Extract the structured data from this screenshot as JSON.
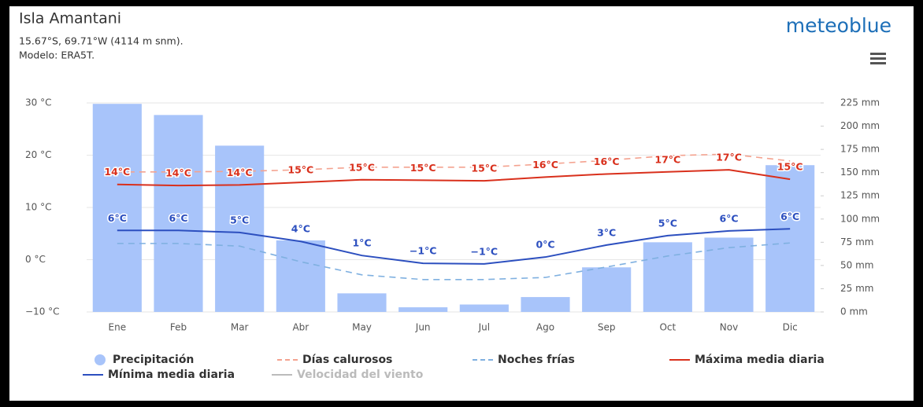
{
  "header": {
    "title": "Isla Amantani",
    "subtitle": "15.67°S, 69.71°W (4114 m snm).",
    "model": "Modelo: ERA5T.",
    "logo": "meteoblue"
  },
  "chart_data": {
    "type": "bar",
    "categories": [
      "Ene",
      "Feb",
      "Mar",
      "Abr",
      "May",
      "Jun",
      "Jul",
      "Ago",
      "Sep",
      "Oct",
      "Nov",
      "Dic"
    ],
    "ylim": [
      -10,
      30
    ],
    "yticks": [
      {
        "value": -10,
        "label": "−10 °C"
      },
      {
        "value": 0,
        "label": "0 °C"
      },
      {
        "value": 10,
        "label": "10 °C"
      },
      {
        "value": 20,
        "label": "20 °C"
      },
      {
        "value": 30,
        "label": "30 °C"
      }
    ],
    "y2lim": [
      0,
      225
    ],
    "y2ticks": [
      {
        "value": 0,
        "label": "0 mm"
      },
      {
        "value": 25,
        "label": "25 mm"
      },
      {
        "value": 50,
        "label": "50 mm"
      },
      {
        "value": 75,
        "label": "75 mm"
      },
      {
        "value": 100,
        "label": "100 mm"
      },
      {
        "value": 125,
        "label": "125 mm"
      },
      {
        "value": 150,
        "label": "150 mm"
      },
      {
        "value": 175,
        "label": "175 mm"
      },
      {
        "value": 200,
        "label": "200 mm"
      },
      {
        "value": 225,
        "label": "225 mm"
      }
    ],
    "grid": true,
    "series": [
      {
        "name": "Precipitación",
        "type": "bar",
        "axis": "y2",
        "color": "#a8c4fa",
        "values": [
          224,
          212,
          179,
          77,
          20,
          5,
          8,
          16,
          48,
          75,
          80,
          158
        ]
      },
      {
        "name": "Días calurosos",
        "type": "line",
        "dashed": true,
        "color": "#f4a28f",
        "values": [
          16.8,
          16.8,
          16.9,
          17.2,
          17.7,
          17.7,
          17.7,
          18.3,
          19.0,
          19.9,
          20.2,
          18.9
        ]
      },
      {
        "name": "Noches frías",
        "type": "line",
        "dashed": true,
        "color": "#7fb0e0",
        "values": [
          3.1,
          3.1,
          2.6,
          -0.4,
          -2.9,
          -3.8,
          -3.8,
          -3.4,
          -1.4,
          0.7,
          2.3,
          3.2
        ]
      },
      {
        "name": "Máxima media diaria",
        "type": "line",
        "color": "#d9301c",
        "values": [
          14.4,
          14.2,
          14.3,
          14.8,
          15.3,
          15.2,
          15.1,
          15.8,
          16.4,
          16.8,
          17.2,
          15.4
        ],
        "value_labels": [
          "14°C",
          "14°C",
          "14°C",
          "15°C",
          "15°C",
          "15°C",
          "15°C",
          "16°C",
          "16°C",
          "17°C",
          "17°C",
          "15°C"
        ]
      },
      {
        "name": "Mínima media diaria",
        "type": "line",
        "color": "#2c4fbf",
        "values": [
          5.6,
          5.6,
          5.2,
          3.5,
          0.8,
          -0.7,
          -0.8,
          0.5,
          2.8,
          4.6,
          5.5,
          5.9
        ],
        "value_labels": [
          "6°C",
          "6°C",
          "5°C",
          "4°C",
          "1°C",
          "−1°C",
          "−1°C",
          "0°C",
          "3°C",
          "5°C",
          "6°C",
          "6°C"
        ]
      },
      {
        "name": "Velocidad del viento",
        "type": "line",
        "color": "#bbbbbb",
        "values": [
          null,
          null,
          null,
          null,
          null,
          null,
          null,
          null,
          null,
          null,
          null,
          null
        ]
      }
    ]
  }
}
